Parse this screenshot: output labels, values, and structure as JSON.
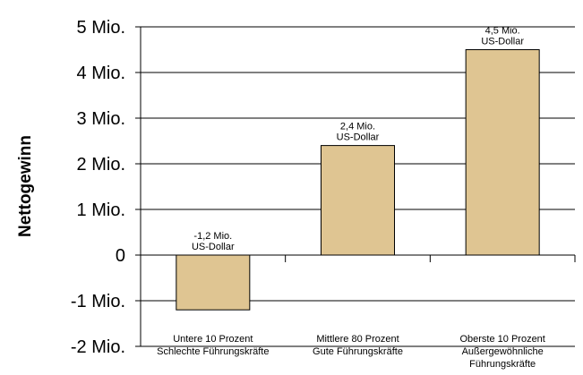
{
  "chart_data": {
    "type": "bar",
    "ylabel": "Nettogewinn",
    "ylim": [
      -2,
      5
    ],
    "y_ticks": [
      {
        "value": 5,
        "label": "5 Mio."
      },
      {
        "value": 4,
        "label": "4 Mio."
      },
      {
        "value": 3,
        "label": "3 Mio."
      },
      {
        "value": 2,
        "label": "2 Mio."
      },
      {
        "value": 1,
        "label": "1 Mio."
      },
      {
        "value": 0,
        "label": "0"
      },
      {
        "value": -1,
        "label": "-1 Mio."
      },
      {
        "value": -2,
        "label": "-2 Mio."
      }
    ],
    "grid": true,
    "bar_color": "#dfc592",
    "categories": [
      {
        "lines": [
          "Untere 10 Prozent",
          "Schlechte Führungskräfte"
        ]
      },
      {
        "lines": [
          "Mittlere 80 Prozent",
          "Gute Führungskräfte"
        ]
      },
      {
        "lines": [
          "Oberste 10 Prozent",
          "Außergewöhnliche",
          "Führungskräfte"
        ]
      }
    ],
    "values": [
      -1.2,
      2.4,
      4.5
    ],
    "data_labels": [
      [
        "-1,2 Mio.",
        "US-Dollar"
      ],
      [
        "2,4 Mio.",
        "US-Dollar"
      ],
      [
        "4,5 Mio.",
        "US-Dollar"
      ]
    ]
  }
}
